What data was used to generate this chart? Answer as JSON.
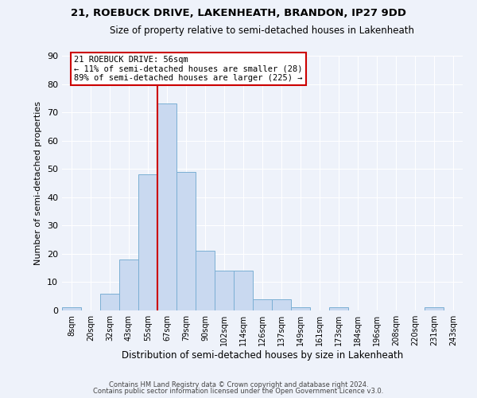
{
  "title": "21, ROEBUCK DRIVE, LAKENHEATH, BRANDON, IP27 9DD",
  "subtitle": "Size of property relative to semi-detached houses in Lakenheath",
  "xlabel": "Distribution of semi-detached houses by size in Lakenheath",
  "ylabel": "Number of semi-detached properties",
  "bar_labels": [
    "8sqm",
    "20sqm",
    "32sqm",
    "43sqm",
    "55sqm",
    "67sqm",
    "79sqm",
    "90sqm",
    "102sqm",
    "114sqm",
    "126sqm",
    "137sqm",
    "149sqm",
    "161sqm",
    "173sqm",
    "184sqm",
    "196sqm",
    "208sqm",
    "220sqm",
    "231sqm",
    "243sqm"
  ],
  "bar_values": [
    1,
    0,
    6,
    18,
    48,
    73,
    49,
    21,
    14,
    14,
    4,
    4,
    1,
    0,
    1,
    0,
    0,
    0,
    0,
    1,
    0
  ],
  "bar_color": "#c9d9f0",
  "bar_edge_color": "#7bafd4",
  "ylim": [
    0,
    90
  ],
  "yticks": [
    0,
    10,
    20,
    30,
    40,
    50,
    60,
    70,
    80,
    90
  ],
  "vline_color": "#cc0000",
  "vline_index": 4,
  "annotation_title": "21 ROEBUCK DRIVE: 56sqm",
  "annotation_line1": "← 11% of semi-detached houses are smaller (28)",
  "annotation_line2": "89% of semi-detached houses are larger (225) →",
  "annotation_box_color": "#cc0000",
  "footer_line1": "Contains HM Land Registry data © Crown copyright and database right 2024.",
  "footer_line2": "Contains public sector information licensed under the Open Government Licence v3.0.",
  "background_color": "#eef2fa",
  "grid_color": "#ffffff"
}
